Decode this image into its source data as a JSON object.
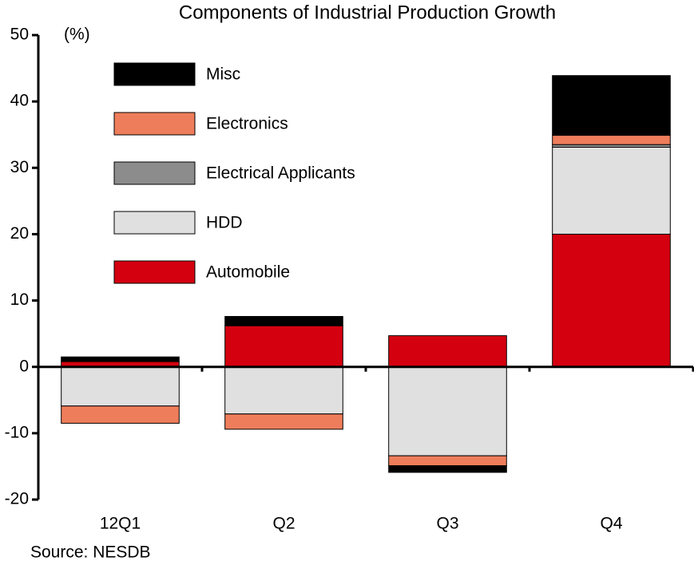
{
  "chart_data": {
    "type": "stacked-bar",
    "title": "Components of Industrial Production Growth",
    "y_label": "(%)",
    "source": "Source: NESDB",
    "categories": [
      "12Q1",
      "Q2",
      "Q3",
      "Q4"
    ],
    "series": [
      {
        "name": "Automobile",
        "color": "#d40010",
        "values": [
          0.8,
          6.2,
          4.7,
          20
        ]
      },
      {
        "name": "HDD",
        "color": "#e0e0e0",
        "values": [
          -5.9,
          -7.1,
          -13.4,
          13.1
        ]
      },
      {
        "name": "Electrical Applicants",
        "color": "#8c8c8c",
        "values": [
          0,
          0,
          0,
          0.4
        ]
      },
      {
        "name": "Electronics",
        "color": "#ee7d5b",
        "values": [
          -2.6,
          -2.3,
          -1.5,
          1.4
        ]
      },
      {
        "name": "Misc",
        "color": "#000000",
        "values": [
          0.7,
          1.4,
          -1.0,
          9.0
        ]
      }
    ],
    "ylim": [
      -20,
      50
    ],
    "yticks": [
      -20,
      -10,
      0,
      10,
      20,
      30,
      40,
      50
    ]
  }
}
